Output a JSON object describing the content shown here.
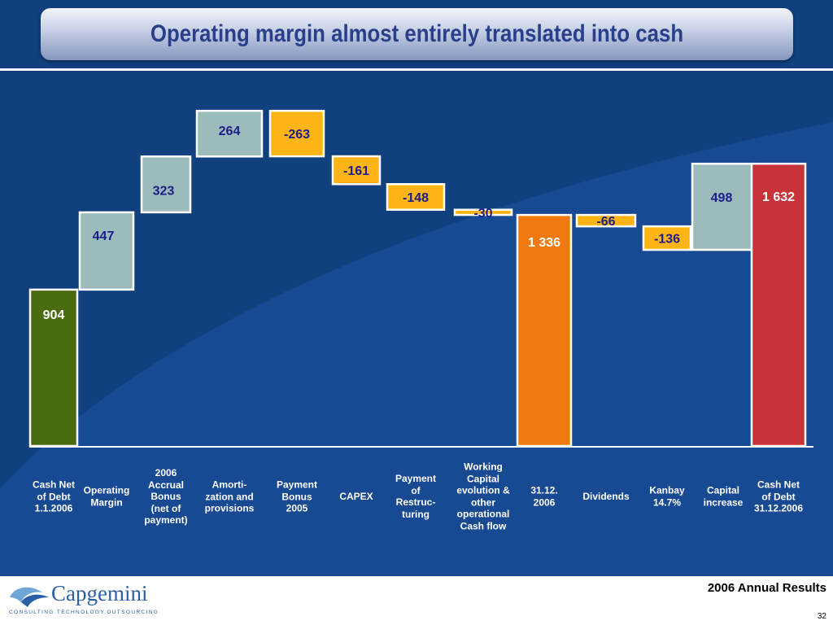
{
  "title": "Operating margin almost entirely translated into cash",
  "chart_data": {
    "type": "bar",
    "subtype": "waterfall",
    "steps": [
      {
        "label": "Cash Net of Debt 1.1.2006",
        "display": "904",
        "value": 904,
        "kind": "total",
        "color": "#4a6b10",
        "label_lines": [
          "Cash Net",
          "of Debt",
          "1.1.2006"
        ]
      },
      {
        "label": "Operating Margin",
        "display": "447",
        "value": 447,
        "kind": "increase",
        "color": "#9cbcbb",
        "label_lines": [
          "Operating",
          "Margin"
        ]
      },
      {
        "label": "2006 Accrual Bonus (net of payment)",
        "display": "323",
        "value": 323,
        "kind": "increase",
        "color": "#9cbcbb",
        "label_lines": [
          "2006",
          "Accrual",
          "Bonus",
          "(net of",
          "payment)"
        ]
      },
      {
        "label": "Amorti- zation and provisions",
        "display": "264",
        "value": 264,
        "kind": "increase",
        "color": "#9cbcbb",
        "label_lines": [
          "Amorti-",
          "zation and",
          "provisions"
        ]
      },
      {
        "label": "Payment Bonus 2005",
        "display": "-263",
        "value": -263,
        "kind": "decrease",
        "color": "#fdb515",
        "label_lines": [
          "Payment",
          "Bonus",
          "2005"
        ]
      },
      {
        "label": "CAPEX",
        "display": "-161",
        "value": -161,
        "kind": "decrease",
        "color": "#fdb515",
        "label_lines": [
          "CAPEX"
        ]
      },
      {
        "label": "Payment of Restruc- turing",
        "display": "-148",
        "value": -148,
        "kind": "decrease",
        "color": "#fdb515",
        "label_lines": [
          "Payment",
          "of",
          "Restruc-",
          "turing"
        ]
      },
      {
        "label": "Working Capital evolution & other operational Cash flow",
        "display": "-30",
        "value": -30,
        "kind": "decrease",
        "color": "#fdb515",
        "label_lines": [
          "Working",
          "Capital",
          "evolution &",
          "other",
          "operational",
          "Cash flow"
        ]
      },
      {
        "label": "31.12. 2006",
        "display": "1 336",
        "value": 1336,
        "kind": "total",
        "color": "#f07a10",
        "label_lines": [
          "31.12.",
          "2006"
        ]
      },
      {
        "label": "Dividends",
        "display": "-66",
        "value": -66,
        "kind": "decrease",
        "color": "#fdb515",
        "label_lines": [
          "Dividends"
        ]
      },
      {
        "label": "Kanbay 14.7%",
        "display": "-136",
        "value": -136,
        "kind": "decrease",
        "color": "#fdb515",
        "label_lines": [
          "Kanbay",
          "14.7%"
        ]
      },
      {
        "label": "Capital increase",
        "display": "498",
        "value": 498,
        "kind": "increase",
        "color": "#9cbcbb",
        "label_lines": [
          "Capital",
          "increase"
        ]
      },
      {
        "label": "Cash Net of Debt 31.12.2006",
        "display": "1 632",
        "value": 1632,
        "kind": "total",
        "color": "#c8333a",
        "label_lines": [
          "Cash Net",
          "of Debt",
          "31.12.2006"
        ]
      }
    ],
    "ylim": [
      0,
      2100
    ]
  },
  "footer": {
    "brand": "Capgemini",
    "tagline": "CONSULTING.TECHNOLOGY.OUTSOURCING",
    "report": "2006 Annual Results",
    "page": "32"
  }
}
